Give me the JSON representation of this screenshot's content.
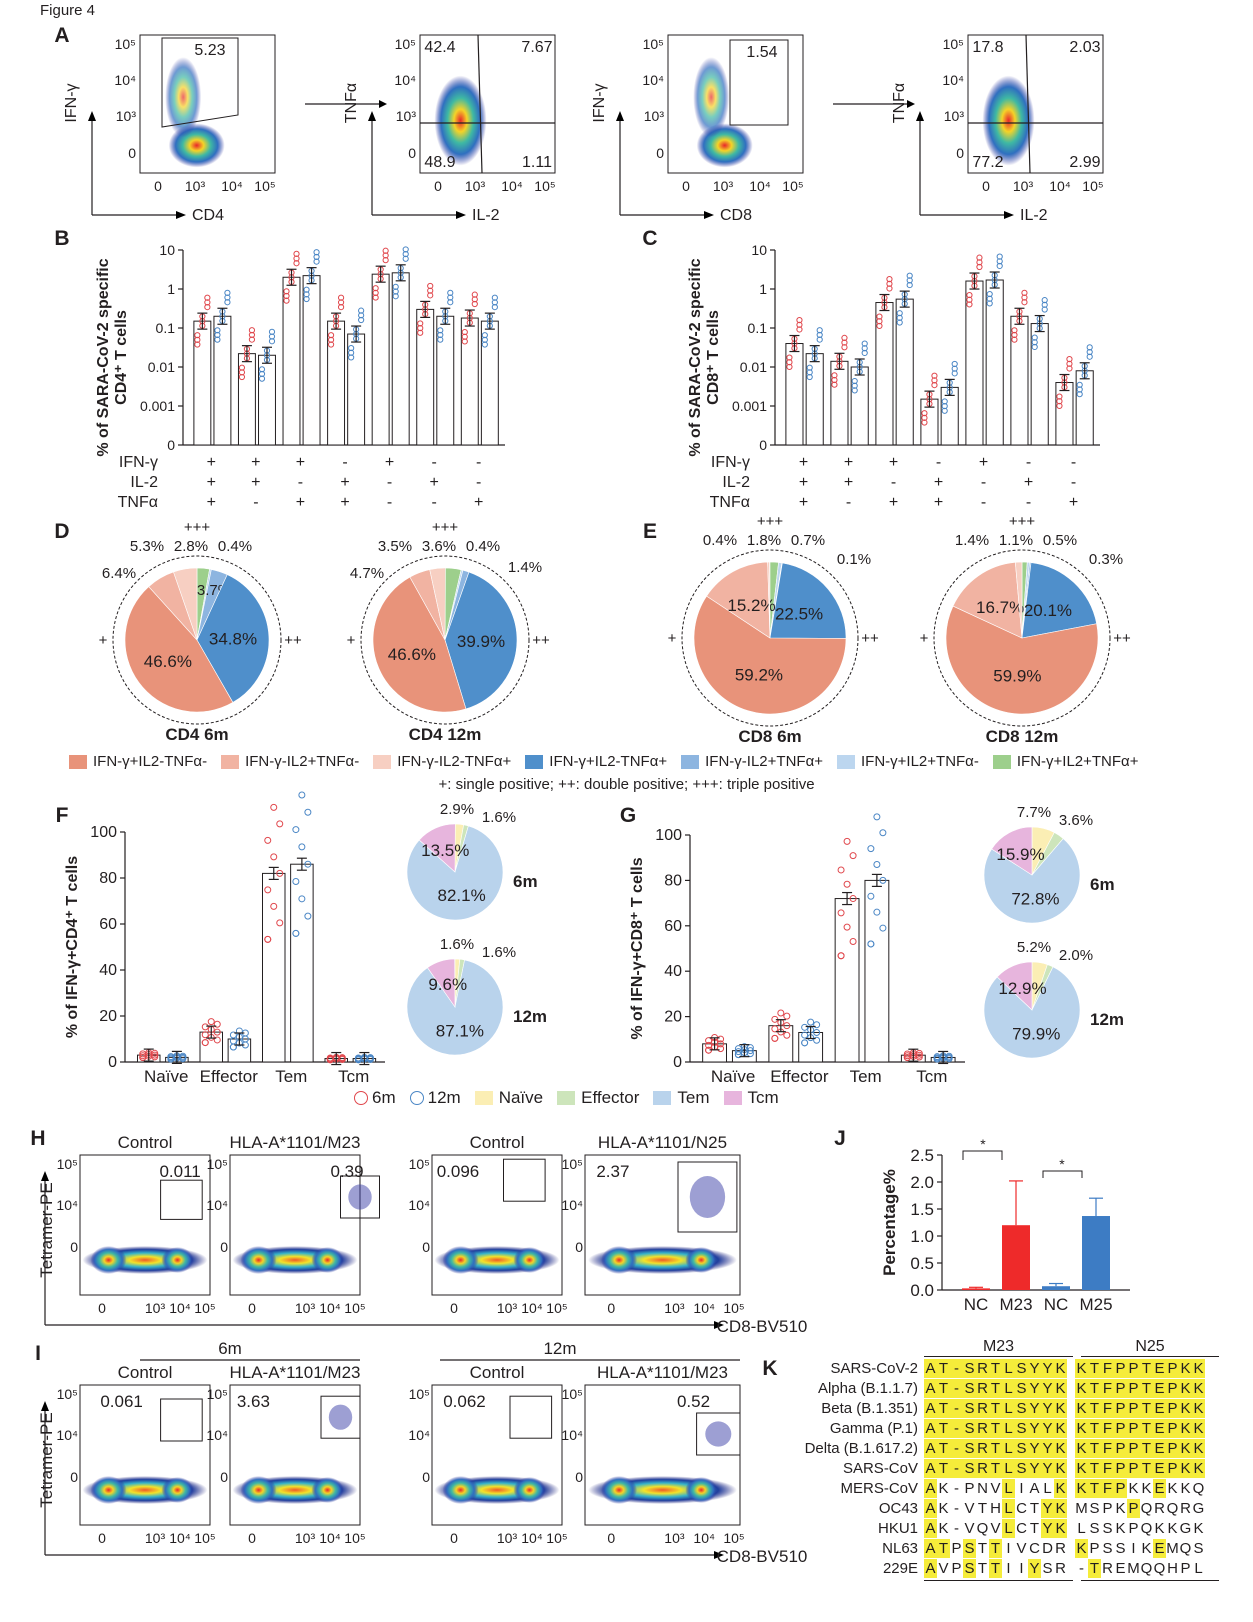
{
  "figure_title": "Figure 4",
  "panel_letters": [
    "A",
    "B",
    "C",
    "D",
    "E",
    "F",
    "G",
    "H",
    "I",
    "J",
    "K"
  ],
  "colors": {
    "c6m": "#e0474c",
    "c12m": "#4a86c5",
    "orange": "#e8937a",
    "salmon": "#f1b3a2",
    "pink": "#f7cfc2",
    "darkblue": "#4f8fcb",
    "midblue": "#8db5e0",
    "lightblue": "#bcd6ef",
    "green": "#9dcf8c",
    "naive": "#fbeeb4",
    "effector": "#cde5bb",
    "tem": "#b9d3ec",
    "tcm": "#e7b5dd",
    "J_red": "#ee2a2a",
    "J_blue": "#3d7cc4",
    "K_highlight": "#f5ec3a"
  },
  "panel_A": {
    "plots": [
      {
        "xlabel": "CD4",
        "ylabel": "IFN-γ",
        "quads": [
          "5.23"
        ]
      },
      {
        "xlabel": "IL-2",
        "ylabel": "TNFα",
        "quads": [
          "42.4",
          "7.67",
          "48.9",
          "1.11"
        ]
      },
      {
        "xlabel": "CD8",
        "ylabel": "IFN-γ",
        "quads": [
          "1.54"
        ]
      },
      {
        "xlabel": "IL-2",
        "ylabel": "TNFα",
        "quads": [
          "17.8",
          "2.03",
          "77.2",
          "2.99"
        ]
      }
    ],
    "xticks": [
      "0",
      "10³",
      "10⁴",
      "10⁵"
    ],
    "yticks": [
      "10⁵",
      "10⁴",
      "10³",
      "0"
    ]
  },
  "chart_data": [
    {
      "id": "B",
      "type": "bar",
      "ylabel_line1": "% of SARA-CoV-2 specific",
      "ylabel_line2": "CD4⁺ T cells",
      "yscale": "log",
      "ytick_labels": [
        "10",
        "1",
        "0.1",
        "0.01",
        "0.001",
        "0"
      ],
      "row_labels": [
        "IFN-γ",
        "IL-2",
        "TNFα"
      ],
      "categories": [
        [
          "+",
          "+",
          "+"
        ],
        [
          "+",
          "+",
          "-"
        ],
        [
          "+",
          "-",
          "+"
        ],
        [
          "-",
          "+",
          "+"
        ],
        [
          "+",
          "-",
          "-"
        ],
        [
          "-",
          "+",
          "-"
        ],
        [
          "-",
          "-",
          "+"
        ]
      ],
      "series": [
        {
          "name": "6m",
          "values": [
            0.15,
            0.022,
            2.0,
            0.15,
            2.4,
            0.3,
            0.18
          ]
        },
        {
          "name": "12m",
          "values": [
            0.2,
            0.02,
            2.2,
            0.07,
            2.6,
            0.2,
            0.15
          ]
        }
      ]
    },
    {
      "id": "C",
      "type": "bar",
      "ylabel_line1": "% of SARA-CoV-2 specific",
      "ylabel_line2": "CD8⁺ T cells",
      "yscale": "log",
      "ytick_labels": [
        "10",
        "1",
        "0.1",
        "0.01",
        "0.001",
        "0"
      ],
      "row_labels": [
        "IFN-γ",
        "IL-2",
        "TNFα"
      ],
      "categories": [
        [
          "+",
          "+",
          "+"
        ],
        [
          "+",
          "+",
          "-"
        ],
        [
          "+",
          "-",
          "+"
        ],
        [
          "-",
          "+",
          "+"
        ],
        [
          "+",
          "-",
          "-"
        ],
        [
          "-",
          "+",
          "-"
        ],
        [
          "-",
          "-",
          "+"
        ]
      ],
      "series": [
        {
          "name": "6m",
          "values": [
            0.04,
            0.014,
            0.45,
            0.0015,
            1.6,
            0.2,
            0.004
          ]
        },
        {
          "name": "12m",
          "values": [
            0.022,
            0.01,
            0.55,
            0.003,
            1.7,
            0.13,
            0.008
          ]
        }
      ]
    },
    {
      "id": "D",
      "type": "pie",
      "pies": [
        {
          "title": "CD4 6m",
          "values": [
            2.8,
            0.4,
            3.7,
            34.8,
            46.6,
            6.4,
            5.3
          ],
          "labels": [
            "2.8%",
            "0.4%",
            "3.7%",
            "34.8%",
            "46.6%",
            "6.4%",
            "5.3%"
          ]
        },
        {
          "title": "CD4 12m",
          "values": [
            3.6,
            0.4,
            1.4,
            39.9,
            46.6,
            4.7,
            3.5
          ],
          "labels": [
            "3.6%",
            "0.4%",
            "1.4%",
            "39.9%",
            "46.6%",
            "4.7%",
            "3.5%"
          ]
        }
      ]
    },
    {
      "id": "E",
      "type": "pie",
      "pies": [
        {
          "title": "CD8 6m",
          "values": [
            1.8,
            0.7,
            0.1,
            22.5,
            59.2,
            15.2,
            0.4
          ],
          "labels": [
            "1.8%",
            "0.7%",
            "0.1%",
            "22.5%",
            "59.2%",
            "15.2%",
            "0.4%"
          ]
        },
        {
          "title": "CD8 12m",
          "values": [
            1.1,
            0.5,
            0.3,
            20.1,
            59.9,
            16.7,
            1.4
          ],
          "labels": [
            "1.1%",
            "0.5%",
            "0.3%",
            "20.1%",
            "59.9%",
            "16.7%",
            "1.4%"
          ]
        }
      ]
    },
    {
      "id": "F",
      "type": "bar",
      "ylabel": "% of IFN-γ+CD4⁺ T cells",
      "ylim": [
        0,
        100
      ],
      "ytick_labels": [
        "0",
        "20",
        "40",
        "60",
        "80",
        "100"
      ],
      "categories": [
        "Naïve",
        "Effector",
        "Tem",
        "Tcm"
      ],
      "series": [
        {
          "name": "6m",
          "values": [
            3,
            13,
            82,
            1.5
          ]
        },
        {
          "name": "12m",
          "values": [
            2,
            10,
            86,
            1.5
          ]
        }
      ],
      "pies": [
        {
          "title": "6m",
          "values": [
            82.1,
            13.5,
            2.9,
            1.6
          ],
          "labels": [
            "82.1%",
            "13.5%",
            "2.9%",
            "1.6%"
          ]
        },
        {
          "title": "12m",
          "values": [
            87.1,
            9.6,
            1.6,
            1.6
          ],
          "labels": [
            "87.1%",
            "9.6%",
            "1.6%",
            "1.6%"
          ]
        }
      ]
    },
    {
      "id": "G",
      "type": "bar",
      "ylabel": "% of IFN-γ+CD8⁺ T cells",
      "ylim": [
        0,
        100
      ],
      "ytick_labels": [
        "0",
        "20",
        "40",
        "60",
        "80",
        "100"
      ],
      "categories": [
        "Naïve",
        "Effector",
        "Tem",
        "Tcm"
      ],
      "series": [
        {
          "name": "6m",
          "values": [
            8,
            16,
            72,
            3
          ]
        },
        {
          "name": "12m",
          "values": [
            5,
            13,
            80,
            2
          ]
        }
      ],
      "pies": [
        {
          "title": "6m",
          "values": [
            72.8,
            15.9,
            7.7,
            3.6
          ],
          "labels": [
            "72.8%",
            "15.9%",
            "7.7%",
            "3.6%"
          ]
        },
        {
          "title": "12m",
          "values": [
            79.9,
            12.9,
            5.2,
            2.0
          ],
          "labels": [
            "79.9%",
            "12.9%",
            "5.2%",
            "2.0%"
          ]
        }
      ]
    },
    {
      "id": "J",
      "type": "bar",
      "ylabel": "Percentage%",
      "ylim": [
        0,
        2.5
      ],
      "ytick_labels": [
        "0.0",
        "0.5",
        "1.0",
        "1.5",
        "2.0",
        "2.5"
      ],
      "categories": [
        "NC",
        "M23",
        "NC",
        "M25"
      ],
      "values": [
        0.03,
        1.2,
        0.07,
        1.37
      ],
      "error_upper": [
        0.05,
        2.02,
        0.12,
        1.7
      ],
      "significance": [
        "*",
        "*"
      ]
    }
  ],
  "legend_DE": {
    "items": [
      "IFN-γ+IL2-TNFα-",
      "IFN-γ-IL2+TNFα-",
      "IFN-γ-IL2-TNFα+",
      "IFN-γ+IL2-TNFα+",
      "IFN-γ-IL2+TNFα+",
      "IFN-γ+IL2+TNFα-",
      "IFN-γ+IL2+TNFα+"
    ],
    "note": "+: single positive; ++: double positive; +++: triple positive",
    "marks": {
      "single": "+",
      "double": "++",
      "triple": "+++"
    }
  },
  "legend_FG": {
    "items": [
      "6m",
      "12m",
      "Naïve",
      "Effector",
      "Tem",
      "Tcm"
    ]
  },
  "panel_H": {
    "titles": [
      "Control",
      "HLA-A*1101/M23",
      "Control",
      "HLA-A*1101/N25"
    ],
    "gates": [
      "0.011",
      "0.39",
      "0.096",
      "2.37"
    ],
    "ylabel": "Tetramer-PE",
    "xlabel": "CD8-BV510"
  },
  "panel_I": {
    "groups": [
      "6m",
      "12m"
    ],
    "titles": [
      "Control",
      "HLA-A*1101/M23",
      "Control",
      "HLA-A*1101/M23"
    ],
    "gates": [
      "0.061",
      "3.63",
      "0.062",
      "0.52"
    ],
    "ylabel": "Tetramer-PE",
    "xlabel": "CD8-BV510"
  },
  "panel_K": {
    "headers": [
      "M23",
      "N25"
    ],
    "rows": [
      {
        "name": "SARS-CoV-2",
        "m23": "AT-SRTLSYYK",
        "n25": "KTFPPTEPKK",
        "hm": "11111111111",
        "hn": "1111111111"
      },
      {
        "name": "Alpha (B.1.1.7)",
        "m23": "AT-SRTLSYYK",
        "n25": "KTFPPTEPKK",
        "hm": "11111111111",
        "hn": "1111111111"
      },
      {
        "name": "Beta (B.1.351)",
        "m23": "AT-SRTLSYYK",
        "n25": "KTFPPTEPKK",
        "hm": "11111111111",
        "hn": "1111111111"
      },
      {
        "name": "Gamma (P.1)",
        "m23": "AT-SRTLSYYK",
        "n25": "KTFPPTEPKK",
        "hm": "11111111111",
        "hn": "1111111111"
      },
      {
        "name": "Delta (B.1.617.2)",
        "m23": "AT-SRTLSYYK",
        "n25": "KTFPPTEPKK",
        "hm": "11111111111",
        "hn": "1111111111"
      },
      {
        "name": "SARS-CoV",
        "m23": "AT-SRTLSYYK",
        "n25": "KTFPPTEPKK",
        "hm": "11111111111",
        "hn": "1111111111"
      },
      {
        "name": "MERS-CoV",
        "m23": "AK-PNVLIALK",
        "n25": "KTFPKKEKKQ",
        "hm": "10000010001",
        "hn": "1111001000"
      },
      {
        "name": "OC43",
        "m23": "AK-VTHLCTYK",
        "n25": "MSPKPQRQRG",
        "hm": "10000010011",
        "hn": "0000100000"
      },
      {
        "name": "HKU1",
        "m23": "AK-VQVLCTYK",
        "n25": "LSSKPQKKGK",
        "hm": "10000010011",
        "hn": "0000000000"
      },
      {
        "name": "NL63",
        "m23": "ATPSTTIVCDR",
        "n25": "KPSSIKEMQS",
        "hm": "11010100000",
        "hn": "1000001000"
      },
      {
        "name": "229E",
        "m23": "AVPSTTIIYSR",
        "n25": "-TREMQQHPL",
        "hm": "10010100100",
        "hn": "0100000000"
      }
    ]
  }
}
